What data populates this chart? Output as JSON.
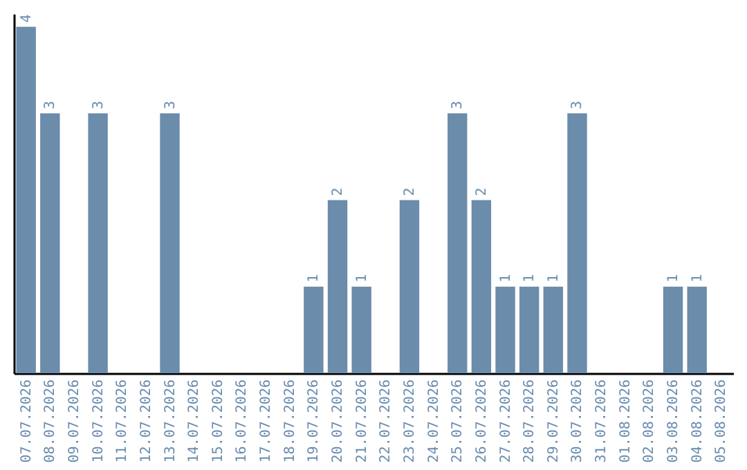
{
  "chart_data": {
    "type": "bar",
    "categories": [
      "07.07.2026",
      "08.07.2026",
      "09.07.2026",
      "10.07.2026",
      "11.07.2026",
      "12.07.2026",
      "13.07.2026",
      "14.07.2026",
      "15.07.2026",
      "16.07.2026",
      "17.07.2026",
      "18.07.2026",
      "19.07.2026",
      "20.07.2026",
      "21.07.2026",
      "22.07.2026",
      "23.07.2026",
      "24.07.2026",
      "25.07.2026",
      "26.07.2026",
      "27.07.2026",
      "28.07.2026",
      "29.07.2026",
      "30.07.2026",
      "31.07.2026",
      "01.08.2026",
      "02.08.2026",
      "03.08.2026",
      "04.08.2026",
      "05.08.2026"
    ],
    "values": [
      4,
      3,
      0,
      3,
      0,
      0,
      3,
      0,
      0,
      0,
      0,
      0,
      1,
      2,
      1,
      0,
      2,
      0,
      3,
      2,
      1,
      1,
      1,
      3,
      0,
      0,
      0,
      1,
      1,
      0
    ],
    "value_labels": [
      "4",
      "3",
      null,
      "3",
      null,
      null,
      "3",
      null,
      null,
      null,
      null,
      null,
      "1",
      "2",
      "1",
      null,
      "2",
      null,
      "3",
      "2",
      "1",
      "1",
      "1",
      "3",
      null,
      null,
      null,
      "1",
      "1",
      null
    ],
    "color": "#6b8cab",
    "ylim": [
      0,
      4.15
    ]
  }
}
